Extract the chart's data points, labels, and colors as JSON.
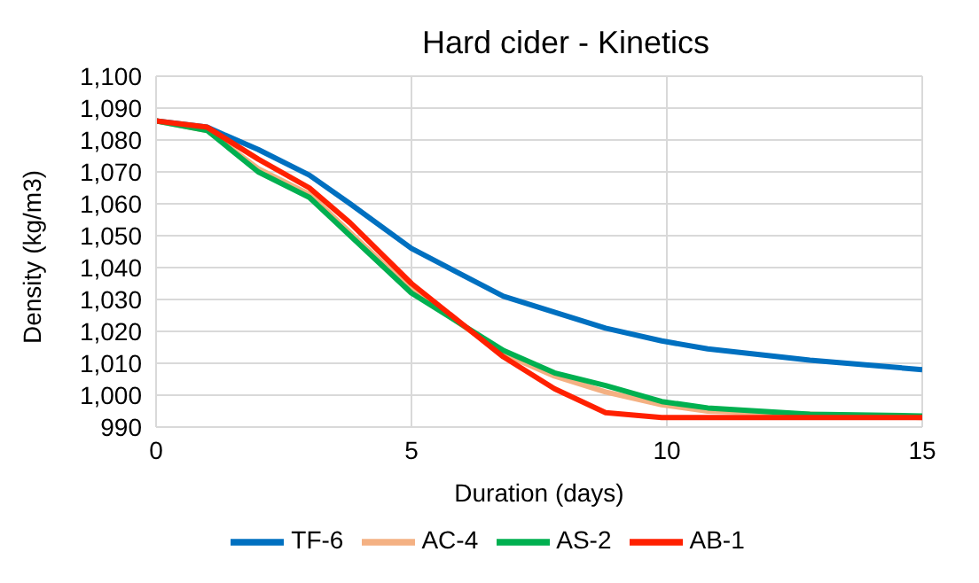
{
  "chart_data": {
    "type": "line",
    "title": "Hard cider - Kinetics",
    "xlabel": "Duration (days)",
    "ylabel": "Density (kg/m3)",
    "x": [
      0,
      1,
      2,
      3,
      3.8,
      5,
      6.8,
      7.8,
      8.8,
      9.9,
      10.8,
      12.8,
      15
    ],
    "series": [
      {
        "name": "TF-6",
        "color": "#0070c0",
        "values": [
          1086,
          1084,
          1077,
          1069,
          1060,
          1046,
          1031,
          1026,
          1021,
          1017,
          1014.5,
          1011,
          1008
        ]
      },
      {
        "name": "AC-4",
        "color": "#f4b183",
        "values": [
          1086,
          1083,
          1071,
          1063,
          1051,
          1033,
          1013,
          1006,
          1001,
          997,
          995,
          994,
          993
        ]
      },
      {
        "name": "AS-2",
        "color": "#00b050",
        "values": [
          1086,
          1083,
          1070,
          1062,
          1050,
          1032,
          1014,
          1007,
          1003,
          998,
          996,
          994,
          993.5
        ]
      },
      {
        "name": "AB-1",
        "color": "#ff2000",
        "values": [
          1086,
          1084,
          1074,
          1065,
          1054,
          1035,
          1012,
          1002,
          994.5,
          993,
          993,
          993,
          993
        ]
      }
    ],
    "xlim": [
      0,
      15
    ],
    "xticks": [
      0,
      5,
      10,
      15
    ],
    "ylim": [
      990,
      1100
    ],
    "yticks": [
      {
        "value": 990,
        "label": "990"
      },
      {
        "value": 1000,
        "label": "1,000"
      },
      {
        "value": 1010,
        "label": "1,010"
      },
      {
        "value": 1020,
        "label": "1,020"
      },
      {
        "value": 1030,
        "label": "1,030"
      },
      {
        "value": 1040,
        "label": "1,040"
      },
      {
        "value": 1050,
        "label": "1,050"
      },
      {
        "value": 1060,
        "label": "1,060"
      },
      {
        "value": 1070,
        "label": "1,070"
      },
      {
        "value": 1080,
        "label": "1,080"
      },
      {
        "value": 1090,
        "label": "1,090"
      },
      {
        "value": 1100,
        "label": "1,100"
      }
    ],
    "grid": true,
    "legend": "bottom",
    "marker": "none",
    "line_style": "solid"
  }
}
